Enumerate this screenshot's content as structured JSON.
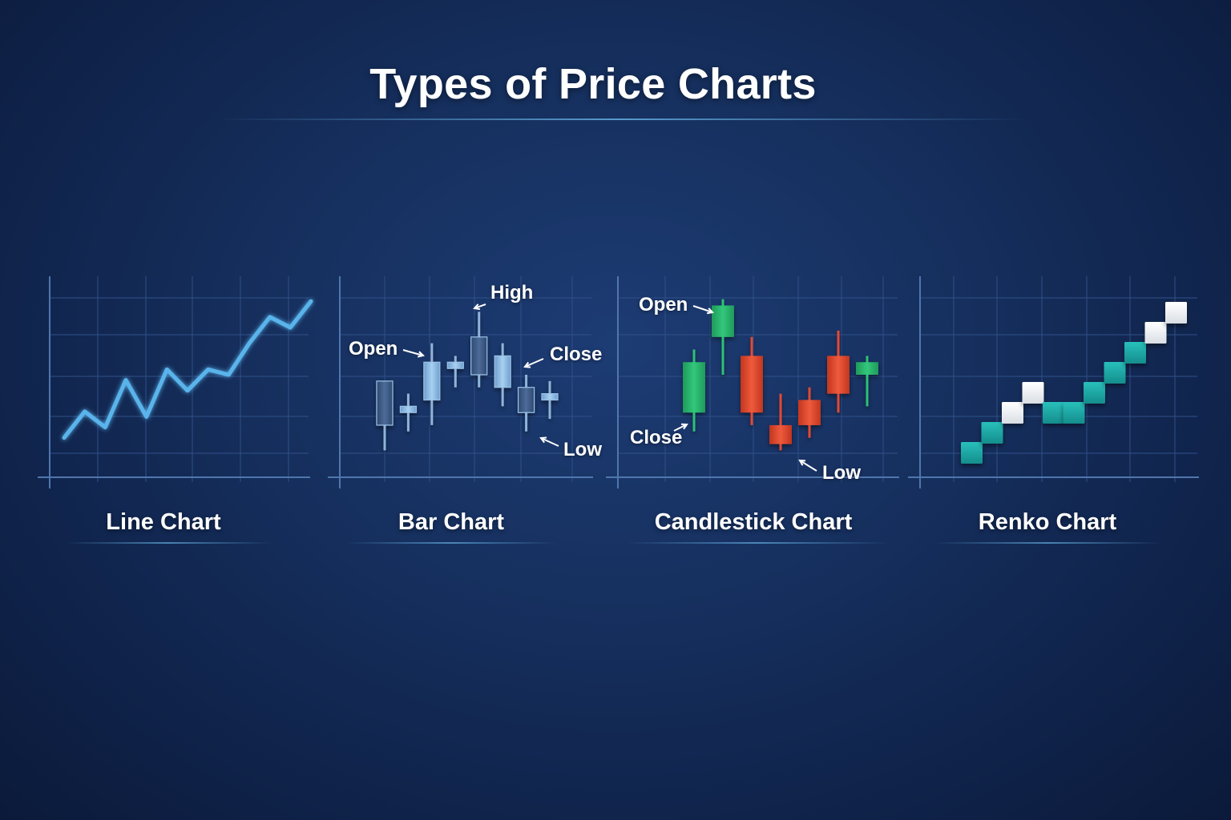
{
  "page": {
    "title": "Types of Price Charts",
    "colors": {
      "background": "#122a56",
      "grid": "#31528a",
      "line_series": "#5ab4ec",
      "bar_ohlc": "#8fbfe6",
      "bar_ohlc_dark": "#3e5a85",
      "candle_up": "#25b36b",
      "candle_down": "#e0452f",
      "renko_brick": "#1ea7a4",
      "renko_light": "#f2f4f6"
    }
  },
  "chart_data": [
    {
      "type": "line",
      "title": "Line Chart",
      "xlabel": "",
      "ylabel": "",
      "grid": true,
      "x": [
        1,
        2,
        3,
        4,
        5,
        6,
        7,
        8,
        9,
        10,
        11,
        12,
        13
      ],
      "series": [
        {
          "values": [
            5.4,
            5.9,
            5.6,
            6.5,
            5.8,
            6.7,
            6.3,
            6.7,
            6.6,
            7.2,
            7.7,
            7.5,
            8.0
          ]
        }
      ],
      "ylim": [
        4.8,
        8.4
      ]
    },
    {
      "type": "ohlc",
      "title": "Bar Chart",
      "grid": true,
      "annotations": {
        "high": "High",
        "open": "Open",
        "close": "Close",
        "low": "Low"
      },
      "bars": [
        {
          "open": 5.3,
          "high": 6.0,
          "low": 4.9,
          "close": 6.0
        },
        {
          "open": 5.5,
          "high": 5.8,
          "low": 5.2,
          "close": 5.6
        },
        {
          "open": 5.7,
          "high": 6.6,
          "low": 5.3,
          "close": 6.3
        },
        {
          "open": 6.2,
          "high": 6.4,
          "low": 5.9,
          "close": 6.3
        },
        {
          "open": 6.7,
          "high": 7.1,
          "low": 5.9,
          "close": 6.1
        },
        {
          "open": 6.4,
          "high": 6.6,
          "low": 5.6,
          "close": 5.9
        },
        {
          "open": 5.9,
          "high": 6.1,
          "low": 5.2,
          "close": 5.5
        },
        {
          "open": 5.8,
          "high": 6.0,
          "low": 5.4,
          "close": 5.7
        }
      ],
      "ylim": [
        4.6,
        7.6
      ]
    },
    {
      "type": "candlestick",
      "title": "Candlestick Chart",
      "grid": true,
      "annotations": {
        "open": "Open",
        "close": "Close",
        "low": "Low"
      },
      "candles": [
        {
          "open": 5.5,
          "high": 6.5,
          "low": 5.2,
          "close": 6.3
        },
        {
          "open": 6.7,
          "high": 7.3,
          "low": 6.1,
          "close": 7.2
        },
        {
          "open": 6.4,
          "high": 6.7,
          "low": 5.3,
          "close": 5.5
        },
        {
          "open": 5.3,
          "high": 5.8,
          "low": 4.9,
          "close": 5.0
        },
        {
          "open": 5.7,
          "high": 5.9,
          "low": 5.1,
          "close": 5.3
        },
        {
          "open": 6.4,
          "high": 6.8,
          "low": 5.5,
          "close": 5.8
        },
        {
          "open": 6.1,
          "high": 6.4,
          "low": 5.6,
          "close": 6.3
        }
      ],
      "ylim": [
        4.6,
        7.6
      ]
    },
    {
      "type": "renko",
      "title": "Renko Chart",
      "grid": true,
      "bricks": [
        {
          "level": 0,
          "style": "teal"
        },
        {
          "level": 1,
          "style": "teal"
        },
        {
          "level": 2,
          "style": "light"
        },
        {
          "level": 3,
          "style": "light"
        },
        {
          "level": 2,
          "style": "teal"
        },
        {
          "level": 2,
          "style": "teal"
        },
        {
          "level": 3,
          "style": "teal"
        },
        {
          "level": 4,
          "style": "teal"
        },
        {
          "level": 5,
          "style": "teal"
        },
        {
          "level": 6,
          "style": "light"
        },
        {
          "level": 7,
          "style": "light"
        }
      ]
    }
  ]
}
